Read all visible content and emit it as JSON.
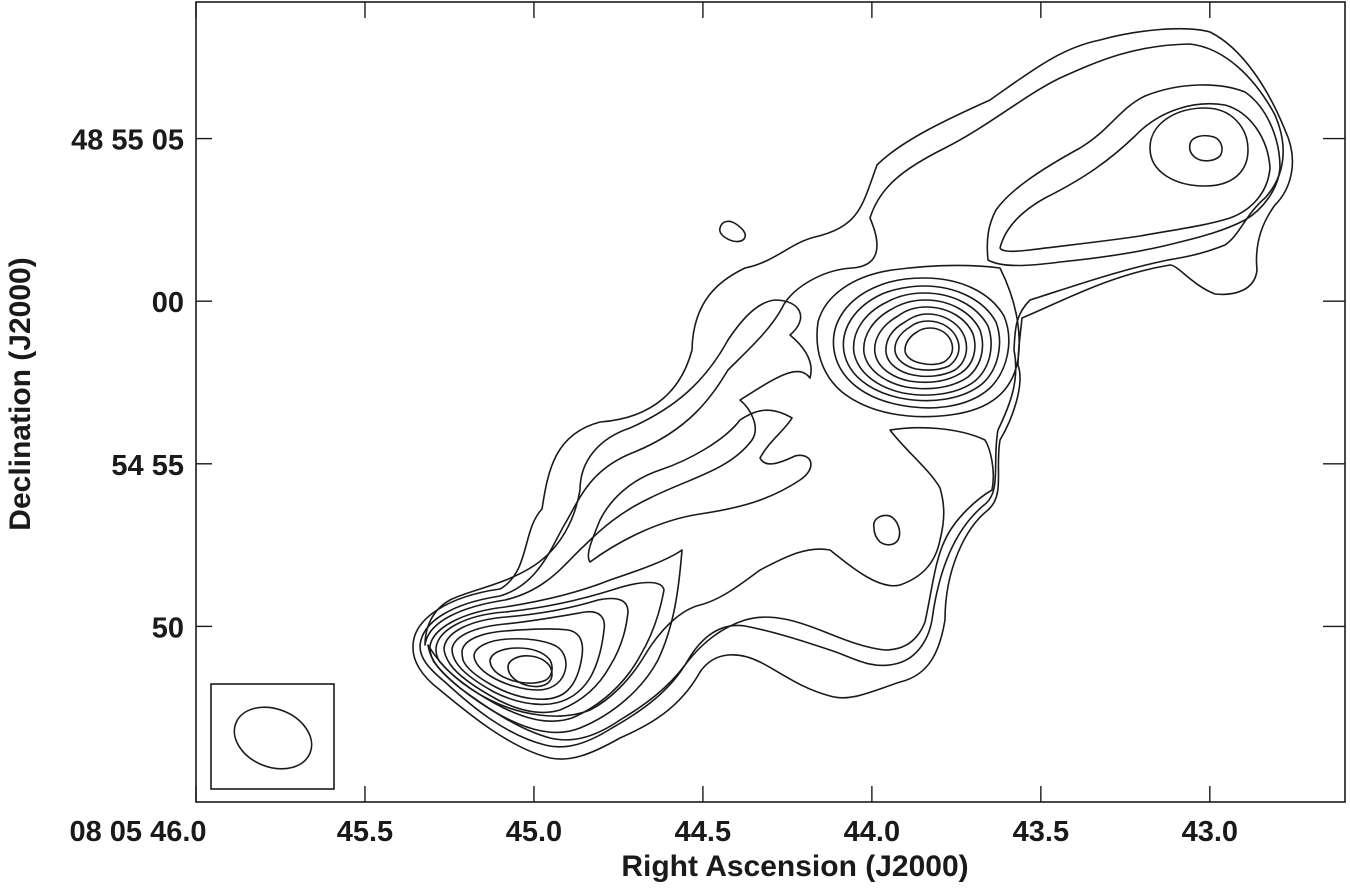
{
  "chart_data": {
    "type": "contour",
    "xlabel": "Right Ascension (J2000)",
    "ylabel": "Declination (J2000)",
    "x_ticks": [
      "08 05 46.0",
      "45.5",
      "45.0",
      "44.5",
      "44.0",
      "43.5",
      "43.0"
    ],
    "y_ticks": [
      "50",
      "54 55",
      "00",
      "48 55 05"
    ],
    "xlim_seconds": [
      46.0,
      42.6
    ],
    "x_tick_values": [
      46.0,
      45.5,
      45.0,
      44.5,
      44.0,
      43.5,
      43.0
    ],
    "ylim_arcsec_offset": [
      -15.4,
      9.2
    ],
    "y_tick_values": [
      -10,
      -5,
      0,
      5
    ],
    "grid": false,
    "beam_inset": "bottom-left",
    "components": [
      {
        "name": "core",
        "ra_s": 43.88,
        "dec_offset_arcsec": -1.2,
        "levels": 9
      },
      {
        "name": "south-west hotspot",
        "ra_s": 45.02,
        "dec_offset_arcsec": -10.6,
        "levels": 9
      },
      {
        "name": "north-east hotspot",
        "ra_s": 43.08,
        "dec_offset_arcsec": 4.3,
        "levels": 6
      },
      {
        "name": "compact knot",
        "ra_s": 44.04,
        "dec_offset_arcsec": -6.6,
        "levels": 1
      },
      {
        "name": "isolated blob",
        "ra_s": 44.46,
        "dec_offset_arcsec": 1.9,
        "levels": 1
      }
    ]
  }
}
